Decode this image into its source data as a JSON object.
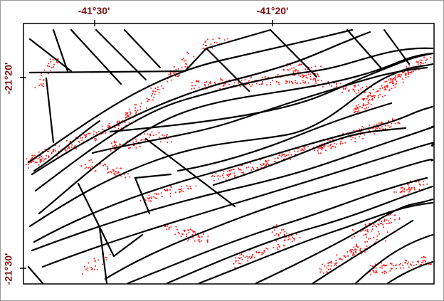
{
  "map": {
    "top_labels": [
      "-41°30'",
      "-41°20'"
    ],
    "left_labels": [
      "-21°20'",
      "-21°30'"
    ],
    "colors": {
      "label": "#7a1010",
      "fault_line": "#000000",
      "epicenter_point": "#ff1a1a",
      "frame": "#000000"
    }
  }
}
